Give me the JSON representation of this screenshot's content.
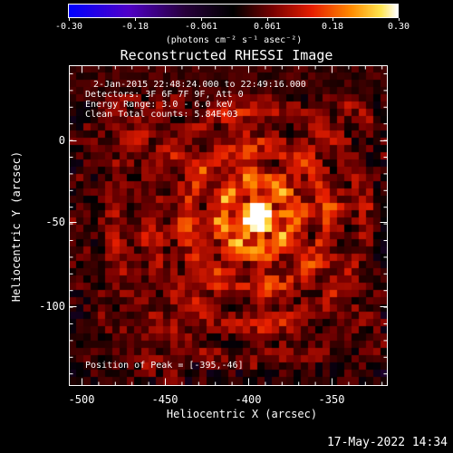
{
  "colorbar": {
    "ticks": [
      "-0.30",
      "-0.18",
      "-0.061",
      "0.061",
      "0.18",
      "0.30"
    ],
    "units_label": "(photons cm⁻² s⁻¹ asec⁻²)"
  },
  "title": "Reconstructed RHESSI Image",
  "info": {
    "line1": "2-Jan-2015 22:48:24.000 to 22:49:16.000",
    "line2": "Detectors: 3F 6F 7F 9F, Att 0",
    "line3": "Energy Range: 3.0 - 6.0 keV",
    "line4": "Clean    Total counts: 5.84E+03",
    "peak": "Position of Peak = [-395,-46]"
  },
  "axes": {
    "xlabel": "Heliocentric X (arcsec)",
    "ylabel": "Heliocentric Y (arcsec)",
    "xticks": [
      "-500",
      "-450",
      "-400",
      "-350"
    ],
    "yticks": [
      "0",
      "-50",
      "-100"
    ]
  },
  "footer": {
    "timestamp": "17-May-2022 14:34"
  },
  "colors": {
    "background": "#000000",
    "foreground": "#ffffff"
  }
}
